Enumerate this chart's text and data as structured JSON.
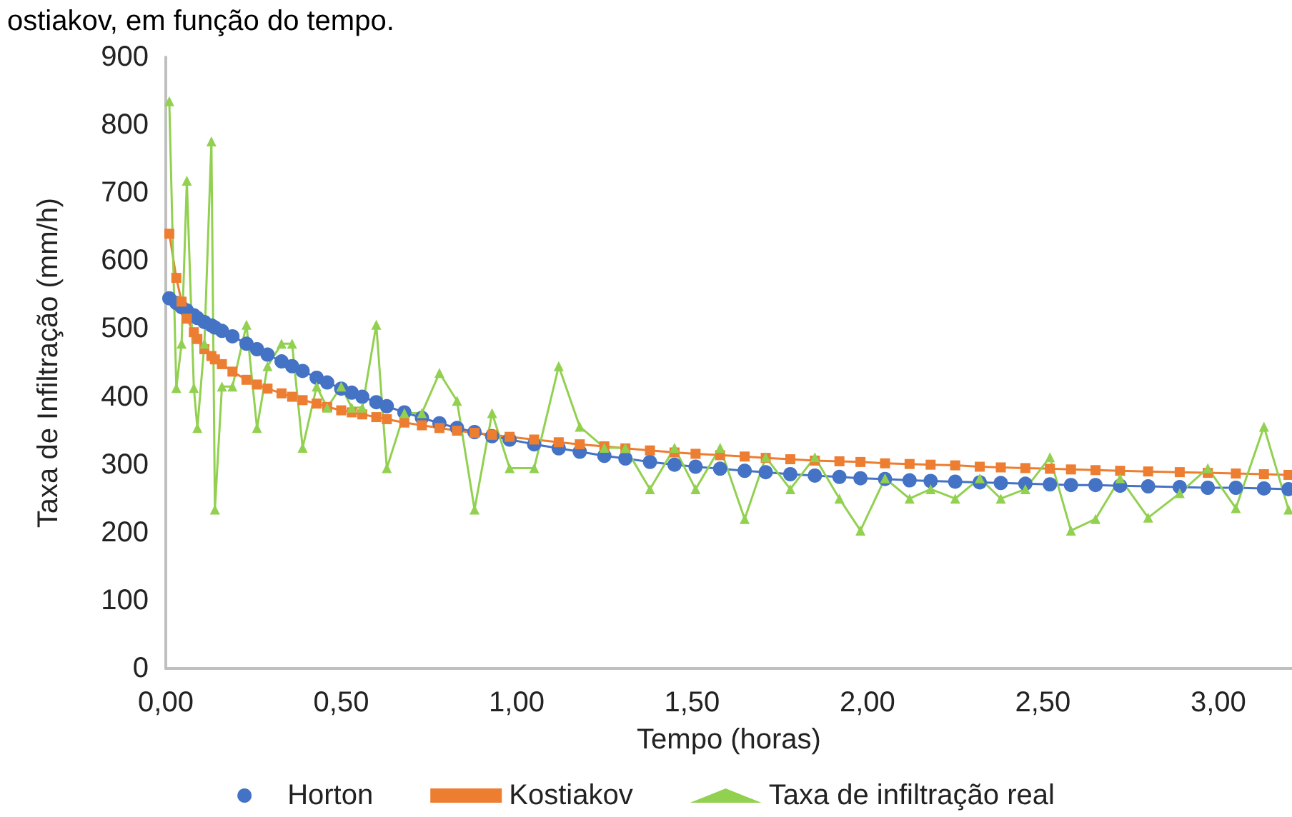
{
  "chart_data": {
    "type": "line",
    "title": "ostiakov, em função do tempo.",
    "xlabel": "Tempo (horas)",
    "ylabel": "Taxa de Infiltração (mm/h)",
    "x": [
      0.01,
      0.03,
      0.045,
      0.06,
      0.08,
      0.09,
      0.11,
      0.13,
      0.14,
      0.16,
      0.19,
      0.23,
      0.26,
      0.29,
      0.33,
      0.36,
      0.39,
      0.43,
      0.46,
      0.5,
      0.53,
      0.56,
      0.6,
      0.63,
      0.68,
      0.73,
      0.78,
      0.83,
      0.88,
      0.93,
      0.98,
      1.05,
      1.12,
      1.18,
      1.25,
      1.31,
      1.38,
      1.45,
      1.51,
      1.58,
      1.65,
      1.71,
      1.78,
      1.85,
      1.92,
      1.98,
      2.05,
      2.12,
      2.18,
      2.25,
      2.32,
      2.38,
      2.45,
      2.52,
      2.58,
      2.65,
      2.72,
      2.8,
      2.89,
      2.97,
      3.05,
      3.13,
      3.2
    ],
    "series": [
      {
        "name": "Horton",
        "color": "#4472c4",
        "marker": "circle",
        "values": [
          545,
          538,
          532,
          527,
          520,
          516,
          510,
          505,
          502,
          497,
          489,
          478,
          470,
          462,
          452,
          445,
          438,
          428,
          421,
          412,
          406,
          400,
          392,
          386,
          377,
          369,
          361,
          354,
          348,
          342,
          337,
          330,
          324,
          319,
          313,
          309,
          304,
          300,
          297,
          294,
          291,
          289,
          286,
          284,
          282,
          280,
          279,
          277,
          276,
          275,
          274,
          273,
          272,
          271,
          270,
          270,
          269,
          268,
          267,
          266,
          266,
          265,
          264
        ]
      },
      {
        "name": "Kostiakov",
        "color": "#ed7d31",
        "marker": "square",
        "values": [
          640,
          575,
          540,
          515,
          495,
          485,
          470,
          460,
          455,
          448,
          437,
          425,
          418,
          412,
          405,
          400,
          395,
          390,
          385,
          380,
          377,
          374,
          370,
          367,
          362,
          358,
          354,
          350,
          347,
          344,
          341,
          337,
          333,
          330,
          327,
          324,
          321,
          318,
          316,
          314,
          312,
          310,
          308,
          306,
          305,
          304,
          302,
          301,
          300,
          299,
          297,
          296,
          295,
          294,
          293,
          292,
          291,
          290,
          289,
          288,
          287,
          286,
          285
        ]
      },
      {
        "name": "Taxa de infiltração real",
        "color": "#92d050",
        "marker": "triangle",
        "values": [
          835,
          413,
          478,
          718,
          413,
          354,
          478,
          776,
          234,
          415,
          415,
          506,
          354,
          445,
          478,
          478,
          325,
          415,
          384,
          415,
          384,
          384,
          506,
          295,
          376,
          376,
          435,
          394,
          234,
          376,
          295,
          295,
          445,
          356,
          325,
          325,
          264,
          325,
          264,
          325,
          220,
          311,
          264,
          311,
          250,
          203,
          280,
          250,
          264,
          250,
          280,
          250,
          264,
          311,
          203,
          220,
          280,
          222,
          258,
          295,
          236,
          356,
          234
        ]
      }
    ],
    "xlim": [
      0,
      3.21
    ],
    "xticks": [
      {
        "value": 0,
        "label": "0,00"
      },
      {
        "value": 0.5,
        "label": "0,50"
      },
      {
        "value": 1,
        "label": "1,00"
      },
      {
        "value": 1.5,
        "label": "1,50"
      },
      {
        "value": 2,
        "label": "2,00"
      },
      {
        "value": 2.5,
        "label": "2,50"
      },
      {
        "value": 3,
        "label": "3,00"
      }
    ],
    "ylim": [
      0,
      900
    ],
    "yticks": [
      0,
      100,
      200,
      300,
      400,
      500,
      600,
      700,
      800,
      900
    ],
    "grid": false,
    "legend": "bottom"
  }
}
